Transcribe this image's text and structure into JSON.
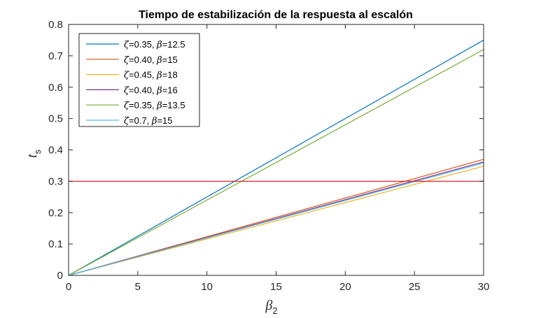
{
  "chart_data": {
    "type": "line",
    "title": "Tiempo de estabilización de la respuesta al escalón",
    "xlabel": "β",
    "xlabel_sub": "2",
    "ylabel": "t",
    "ylabel_sub": "s",
    "xlim": [
      0,
      30
    ],
    "ylim": [
      0,
      0.8
    ],
    "x_ticks": [
      0,
      5,
      10,
      15,
      20,
      25,
      30
    ],
    "y_ticks": [
      0,
      0.1,
      0.2,
      0.3,
      0.4,
      0.5,
      0.6,
      0.7,
      0.8
    ],
    "x_tick_labels": [
      "0",
      "5",
      "10",
      "15",
      "20",
      "25",
      "30"
    ],
    "y_tick_labels": [
      "0",
      "0.1",
      "0.2",
      "0.3",
      "0.4",
      "0.5",
      "0.6",
      "0.7",
      "0.8"
    ],
    "grid": false,
    "legend_position": "top-left",
    "x": [
      0,
      30
    ],
    "series": [
      {
        "name": "ζ=0.35, β=12.5",
        "zeta": "0.35",
        "beta": "12.5",
        "color": "#0072BD",
        "values": [
          0,
          0.75
        ]
      },
      {
        "name": "ζ=0.40, β=15",
        "zeta": "0.40",
        "beta": "15",
        "color": "#D95319",
        "values": [
          0,
          0.37
        ]
      },
      {
        "name": "ζ=0.45, β=18",
        "zeta": "0.45",
        "beta": "18",
        "color": "#EDB120",
        "values": [
          0,
          0.348
        ]
      },
      {
        "name": "ζ=0.40, β=16",
        "zeta": "0.40",
        "beta": "16",
        "color": "#7E2F8E",
        "values": [
          0,
          0.362
        ]
      },
      {
        "name": "ζ=0.35, β=13.5",
        "zeta": "0.35",
        "beta": "13.5",
        "color": "#77AC30",
        "values": [
          0,
          0.72
        ]
      },
      {
        "name": "ζ=0.7, β=15",
        "zeta": "0.7",
        "beta": "15",
        "color": "#4DBEEE",
        "values": [
          0,
          0.358
        ]
      }
    ],
    "reference_lines": [
      {
        "y": 0.3,
        "color": "#E0242F"
      }
    ]
  }
}
